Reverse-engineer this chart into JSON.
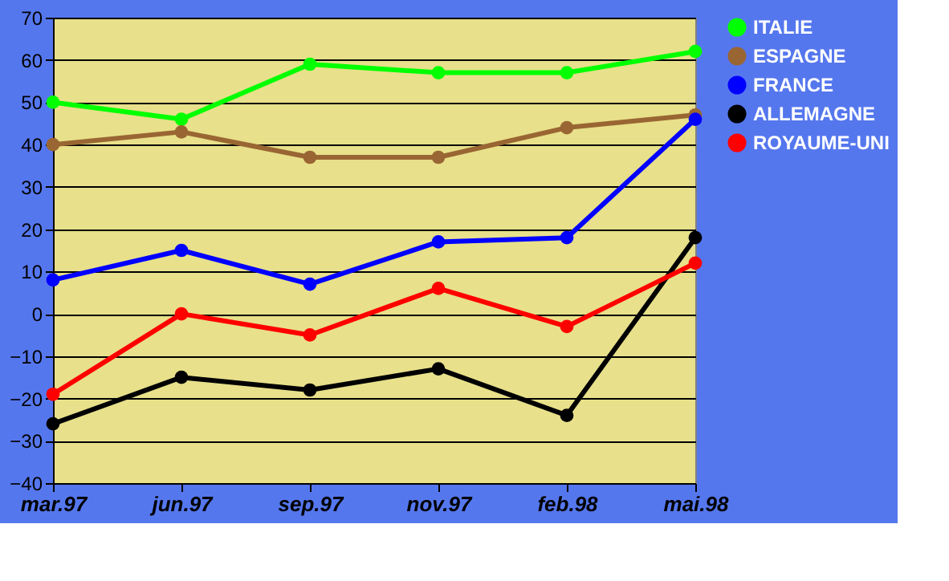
{
  "chart_data": {
    "type": "line",
    "categories": [
      "mar.97",
      "jun.97",
      "sep.97",
      "nov.97",
      "feb.98",
      "mai.98"
    ],
    "series": [
      {
        "name": "ITALIE",
        "color": "#00ff00",
        "values": [
          50,
          46,
          59,
          57,
          57,
          62
        ]
      },
      {
        "name": "ESPAGNE",
        "color": "#996633",
        "values": [
          40,
          43,
          37,
          37,
          44,
          47
        ]
      },
      {
        "name": "FRANCE",
        "color": "#0000ff",
        "values": [
          8,
          15,
          7,
          17,
          18,
          46
        ]
      },
      {
        "name": "ALLEMAGNE",
        "color": "#000000",
        "values": [
          -26,
          -15,
          -18,
          -13,
          -24,
          18
        ]
      },
      {
        "name": "ROYAUME-UNI",
        "color": "#ff0000",
        "values": [
          -19,
          0,
          -5,
          6,
          -3,
          12
        ]
      }
    ],
    "ylim": [
      -40,
      70
    ],
    "yticks": [
      -40,
      -30,
      -20,
      -10,
      0,
      10,
      20,
      30,
      40,
      50,
      60,
      70
    ],
    "grid": "y",
    "legend": "right",
    "marker": "circle",
    "line_style": "solid"
  }
}
